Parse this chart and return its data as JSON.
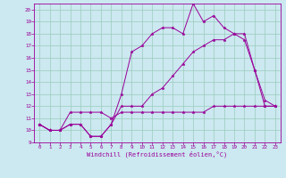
{
  "bg_color": "#cce8f0",
  "grid_color": "#99ccbb",
  "line_color": "#990099",
  "xlim": [
    -0.5,
    23.5
  ],
  "ylim": [
    9,
    20.5
  ],
  "xticks": [
    0,
    1,
    2,
    3,
    4,
    5,
    6,
    7,
    8,
    9,
    10,
    11,
    12,
    13,
    14,
    15,
    16,
    17,
    18,
    19,
    20,
    21,
    22,
    23
  ],
  "yticks": [
    9,
    10,
    11,
    12,
    13,
    14,
    15,
    16,
    17,
    18,
    19,
    20
  ],
  "xlabel": "Windchill (Refroidissement éolien,°C)",
  "line1_y": [
    10.5,
    10.0,
    10.0,
    10.5,
    10.5,
    9.5,
    9.5,
    10.5,
    13.0,
    16.5,
    17.0,
    18.0,
    18.5,
    18.5,
    18.0,
    20.5,
    19.0,
    19.5,
    18.5,
    18.0,
    18.0,
    15.0,
    12.5,
    12.0
  ],
  "line2_y": [
    10.5,
    10.0,
    10.0,
    11.5,
    11.5,
    11.5,
    11.5,
    11.0,
    11.5,
    11.5,
    11.5,
    11.5,
    11.5,
    11.5,
    11.5,
    11.5,
    11.5,
    12.0,
    12.0,
    12.0,
    12.0,
    12.0,
    12.0,
    12.0
  ],
  "line3_y": [
    10.5,
    10.0,
    10.0,
    10.5,
    10.5,
    9.5,
    9.5,
    10.5,
    12.0,
    12.0,
    12.0,
    13.0,
    13.5,
    14.5,
    15.5,
    16.5,
    17.0,
    17.5,
    17.5,
    18.0,
    17.5,
    15.0,
    12.0,
    12.0
  ],
  "marker_size": 2.5,
  "line_width": 0.7,
  "tick_fontsize": 4.2,
  "xlabel_fontsize": 5.0
}
